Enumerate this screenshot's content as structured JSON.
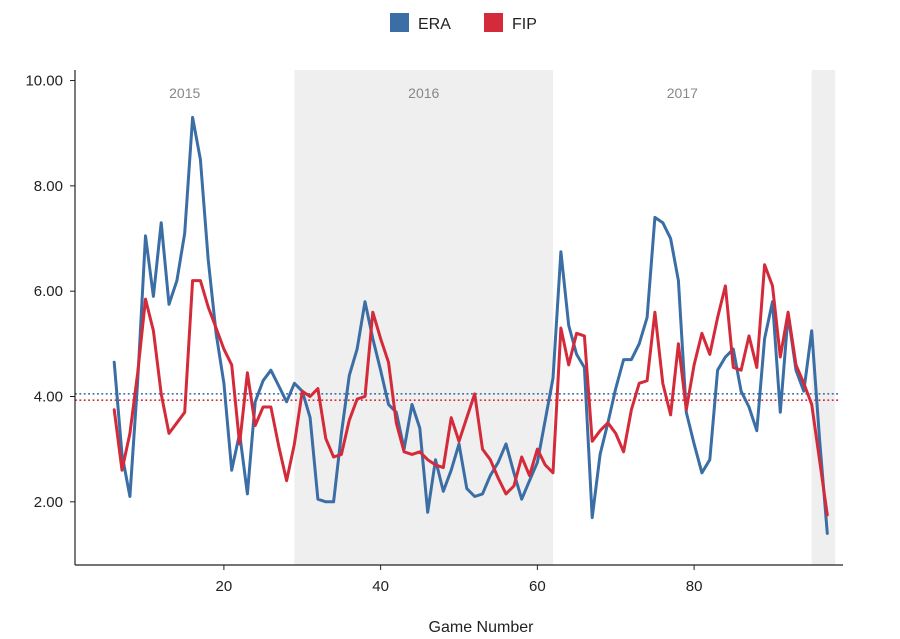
{
  "chart_data": {
    "type": "line",
    "title": "",
    "xlabel": "Game Number",
    "ylabel": "",
    "xlim": [
      1,
      99
    ],
    "ylim": [
      0.8,
      10.2
    ],
    "x_ticks": [
      20,
      40,
      60,
      80
    ],
    "y_ticks": [
      2,
      4,
      6,
      8,
      10
    ],
    "y_tick_labels": [
      "2.00",
      "4.00",
      "6.00",
      "8.00",
      "10.00"
    ],
    "grid": false,
    "legend_position": "top-center",
    "seasons": [
      {
        "label": "2015",
        "start": 1,
        "end": 29,
        "shaded": false
      },
      {
        "label": "2016",
        "start": 29,
        "end": 62,
        "shaded": true
      },
      {
        "label": "2017",
        "start": 62,
        "end": 95,
        "shaded": false
      },
      {
        "label": "",
        "start": 95,
        "end": 98,
        "shaded": true
      }
    ],
    "x_start": 6,
    "series": [
      {
        "name": "ERA",
        "color": "#3b6ea5",
        "average": 4.05,
        "values": [
          4.65,
          2.9,
          2.1,
          4.3,
          7.05,
          5.9,
          7.3,
          5.75,
          6.2,
          7.1,
          9.3,
          8.5,
          6.6,
          5.2,
          4.25,
          2.6,
          3.3,
          2.15,
          3.9,
          4.3,
          4.5,
          4.2,
          3.9,
          4.25,
          4.1,
          3.6,
          2.05,
          2.0,
          2.0,
          3.3,
          4.4,
          4.9,
          5.8,
          5.1,
          4.5,
          3.85,
          3.7,
          3.0,
          3.85,
          3.4,
          1.8,
          2.8,
          2.2,
          2.6,
          3.1,
          2.25,
          2.1,
          2.15,
          2.5,
          2.75,
          3.1,
          2.55,
          2.05,
          2.4,
          2.75,
          3.55,
          4.35,
          6.75,
          5.35,
          4.8,
          4.55,
          1.7,
          2.9,
          3.5,
          4.15,
          4.7,
          4.7,
          5.0,
          5.5,
          7.4,
          7.3,
          7.0,
          6.2,
          3.7,
          3.1,
          2.55,
          2.8,
          4.5,
          4.75,
          4.9,
          4.1,
          3.8,
          3.35,
          5.1,
          5.8,
          3.7,
          5.55,
          4.5,
          4.1,
          5.25,
          3.2,
          1.4
        ]
      },
      {
        "name": "FIP",
        "color": "#d42b3a",
        "average": 3.93,
        "values": [
          3.75,
          2.6,
          3.3,
          4.45,
          5.85,
          5.25,
          4.05,
          3.3,
          3.5,
          3.7,
          6.2,
          6.2,
          5.7,
          5.3,
          4.9,
          4.6,
          3.1,
          4.45,
          3.45,
          3.8,
          3.8,
          3.05,
          2.4,
          3.1,
          4.1,
          4.0,
          4.15,
          3.2,
          2.85,
          2.9,
          3.55,
          3.95,
          4.0,
          5.6,
          5.1,
          4.65,
          3.5,
          2.95,
          2.9,
          2.95,
          2.8,
          2.7,
          2.65,
          3.6,
          3.15,
          3.6,
          4.05,
          3.0,
          2.8,
          2.45,
          2.15,
          2.3,
          2.85,
          2.5,
          3.0,
          2.7,
          2.55,
          5.3,
          4.6,
          5.2,
          5.15,
          3.15,
          3.35,
          3.5,
          3.3,
          2.95,
          3.75,
          4.25,
          4.3,
          5.6,
          4.25,
          3.65,
          5.0,
          3.75,
          4.6,
          5.2,
          4.8,
          5.5,
          6.1,
          4.55,
          4.5,
          5.15,
          4.55,
          6.5,
          6.1,
          4.75,
          5.6,
          4.6,
          4.25,
          3.85,
          2.8,
          1.75
        ]
      }
    ]
  }
}
